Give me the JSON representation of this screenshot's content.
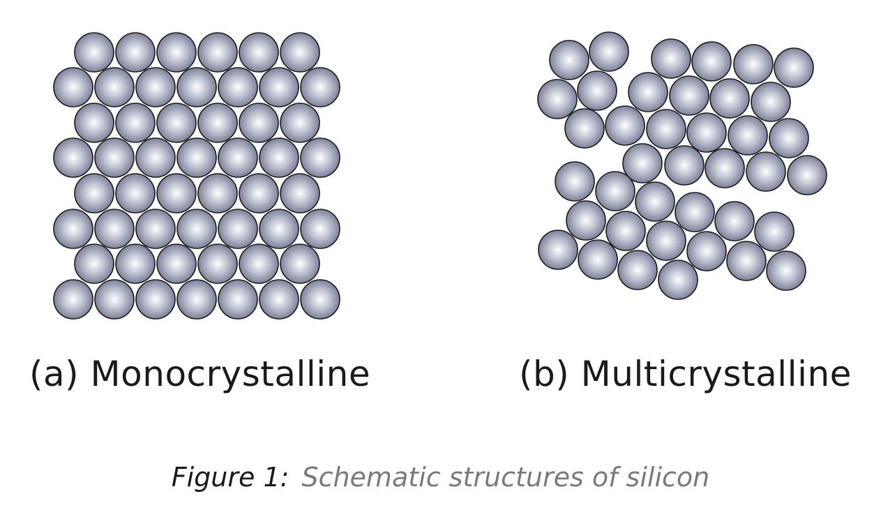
{
  "panels": [
    {
      "label": "(a) Monocrystalline"
    },
    {
      "label": "(b) Multicrystalline"
    }
  ],
  "caption": {
    "figure_number": "Figure 1:",
    "text": "Schematic structures of silicon"
  },
  "colors": {
    "atom_highlight": "#ffffff",
    "atom_mid": "#b9bccc",
    "atom_shadow": "#7d8198",
    "atom_outline": "#1a1a1a",
    "label_text": "#1a1a1a",
    "caption_text": "#7a7a7a"
  }
}
